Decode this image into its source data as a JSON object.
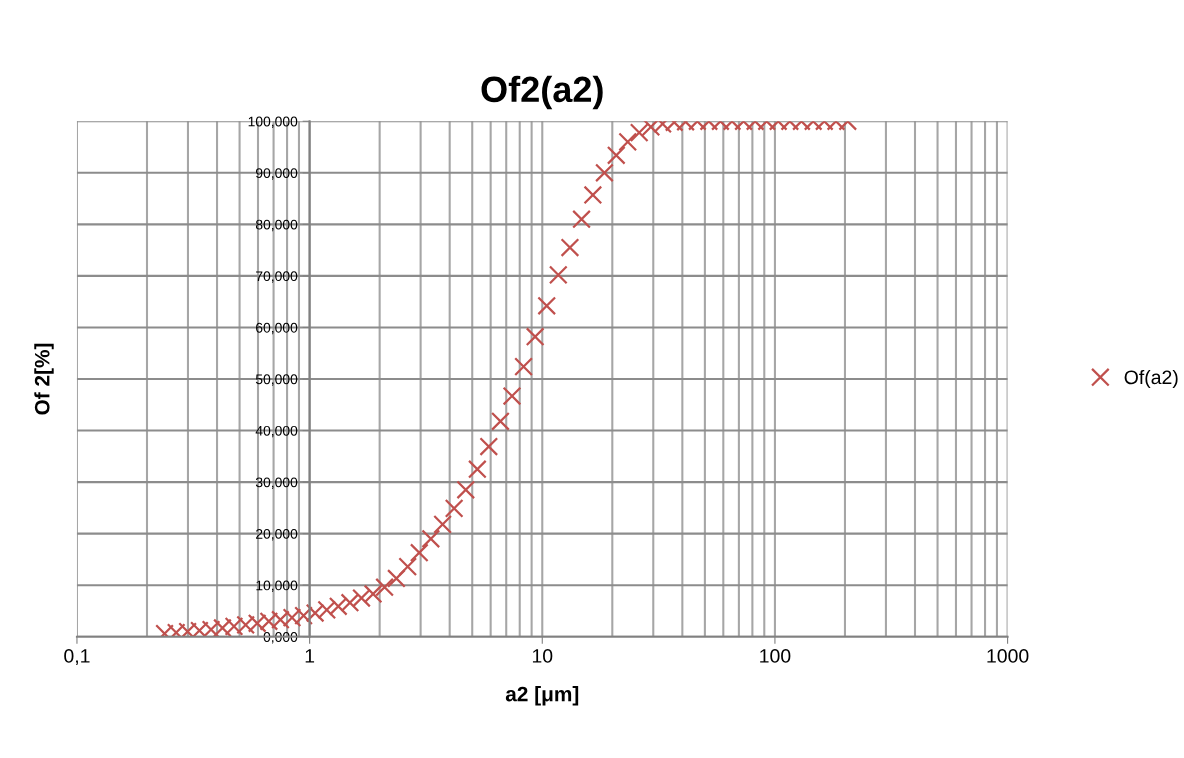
{
  "chart_data": {
    "type": "scatter",
    "title": "Of2(a2)",
    "xlabel": "a2 [μm]",
    "ylabel": "Of 2[%]",
    "log": "x",
    "grid": true,
    "legend": "right",
    "marker": "cross",
    "xlim": [
      0.1,
      1000
    ],
    "xticks": [
      {
        "value": 0.1,
        "label": "0,1"
      },
      1,
      10,
      100,
      1000
    ],
    "ylim": [
      0,
      100
    ],
    "yticks": [
      {
        "value": 0,
        "label": "0,000"
      },
      {
        "value": 10,
        "label": "10,000"
      },
      {
        "value": 20,
        "label": "20,000"
      },
      {
        "value": 30,
        "label": "30,000"
      },
      {
        "value": 40,
        "label": "40,000"
      },
      {
        "value": 50,
        "label": "50,000"
      },
      {
        "value": 60,
        "label": "60,000"
      },
      {
        "value": 70,
        "label": "70,000"
      },
      {
        "value": 80,
        "label": "80,000"
      },
      {
        "value": 90,
        "label": "90,000"
      },
      {
        "value": 100,
        "label": "100,000"
      }
    ],
    "x": [
      0.238,
      0.267,
      0.299,
      0.336,
      0.377,
      0.422,
      0.473,
      0.531,
      0.595,
      0.668,
      0.749,
      0.84,
      0.942,
      1.056,
      1.185,
      1.328,
      1.49,
      1.671,
      1.874,
      2.1,
      2.36,
      2.64,
      2.96,
      3.32,
      3.73,
      4.18,
      4.69,
      5.26,
      5.89,
      6.61,
      7.41,
      8.31,
      9.32,
      10.45,
      11.72,
      13.15,
      14.75,
      16.5,
      18.5,
      20.8,
      23.3,
      26.1,
      29.3,
      32.9,
      36.9,
      41.3,
      46.4,
      52,
      58.3,
      65.4,
      73.3,
      82.2,
      92.2,
      103.3,
      115.9,
      130,
      146,
      163,
      183,
      205.6
    ],
    "series": [
      {
        "name": "Of(a2)",
        "color": "#c0504d",
        "values": [
          0.6,
          0.8,
          1.0,
          1.2,
          1.4,
          1.7,
          2.0,
          2.3,
          2.6,
          3.0,
          3.3,
          3.7,
          4.1,
          4.6,
          5.2,
          5.9,
          6.6,
          7.5,
          8.3,
          9.6,
          11.3,
          13.6,
          16.3,
          19.0,
          21.8,
          24.9,
          28.5,
          32.5,
          36.9,
          41.8,
          46.7,
          52.4,
          58.2,
          64.2,
          70.2,
          75.5,
          81.0,
          85.7,
          90.0,
          93.4,
          96.0,
          97.8,
          98.9,
          99.5,
          99.8,
          99.9,
          100,
          100,
          100,
          100,
          100,
          100,
          100,
          100,
          100,
          100,
          100,
          100,
          100,
          100
        ]
      }
    ]
  }
}
